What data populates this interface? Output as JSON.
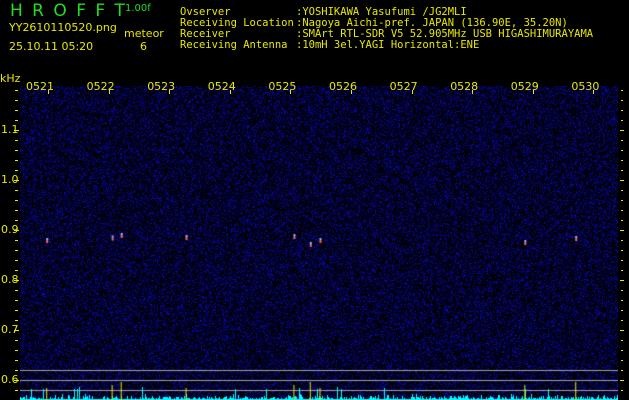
{
  "header": {
    "app_name": "H R O F F T",
    "version": "1.00f",
    "filename": "YY2610110520.png",
    "datetime": "25.10.11 05:20",
    "meteor_label": "meteor",
    "meteor_count": "6",
    "info": [
      {
        "label": "Ovserver",
        "value": ":YOSHIKAWA Yasufumi /JG2MLI"
      },
      {
        "label": "Receiving Location",
        "value": ":Nagoya Aichi-pref. JAPAN (136.90E, 35.20N)"
      },
      {
        "label": "Receiver",
        "value": ":SMArt RTL-SDR V5 52.905MHz USB HIGASHIMURAYAMA"
      },
      {
        "label": "Receiving Antenna",
        "value": ":10mH 3el.YAGI Horizontal:ENE"
      }
    ]
  },
  "chart_data": {
    "type": "heatmap",
    "ylabel": "kHz",
    "x_ticks": [
      "0521",
      "0522",
      "0523",
      "0524",
      "0525",
      "0526",
      "0527",
      "0528",
      "0529",
      "0530"
    ],
    "y_ticks": [
      "1.1",
      "1.0",
      "0.9",
      "0.8",
      "0.7",
      "0.6"
    ],
    "ylim": [
      0.56,
      1.19
    ],
    "meteor_echoes": [
      {
        "time": "05:20.97",
        "freq_khz": 0.88
      },
      {
        "time": "05:22.05",
        "freq_khz": 0.885
      },
      {
        "time": "05:22.20",
        "freq_khz": 0.89
      },
      {
        "time": "05:23.27",
        "freq_khz": 0.886
      },
      {
        "time": "05:25.05",
        "freq_khz": 0.888
      },
      {
        "time": "05:25.32",
        "freq_khz": 0.872
      },
      {
        "time": "05:25.48",
        "freq_khz": 0.88
      },
      {
        "time": "05:28.86",
        "freq_khz": 0.876
      },
      {
        "time": "05:29.70",
        "freq_khz": 0.884
      }
    ],
    "colors": {
      "background": "#000000",
      "noise": "#1a1a9a",
      "signal": "#00ffff",
      "marker": "#e8e800",
      "grid": "#a0a0a0"
    }
  }
}
